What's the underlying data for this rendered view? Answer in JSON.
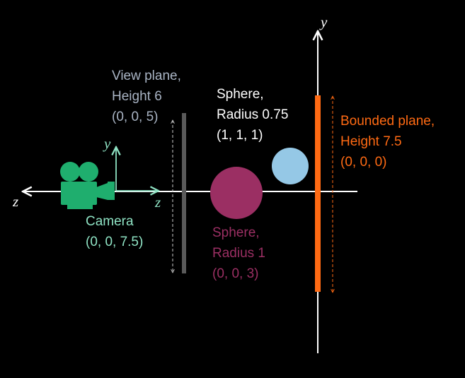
{
  "colors": {
    "background": "#000000",
    "axis": "#ffffff",
    "camera": "#1fae6e",
    "camera_label": "#8fe3c4",
    "view_plane": "#5a5a5a",
    "view_plane_label": "#a9b4c4",
    "sphere_small": "#95c8e6",
    "sphere_large": "#9b2f63",
    "bounded_plane": "#ff6a13"
  },
  "axes": {
    "world_y": "y",
    "world_z": "z",
    "camera_y": "y",
    "camera_z": "z"
  },
  "labels": {
    "view_plane": [
      "View plane,",
      "Height 6",
      "(0, 0, 5)"
    ],
    "sphere_small": [
      "Sphere,",
      "Radius 0.75",
      "(1, 1, 1)"
    ],
    "bounded_plane": [
      "Bounded plane,",
      "Height 7.5",
      "(0, 0, 0)"
    ],
    "camera": [
      "Camera",
      "(0, 0, 7.5)"
    ],
    "sphere_large": [
      "Sphere,",
      "Radius 1",
      "(0, 0, 3)"
    ]
  },
  "icons": {
    "camera": "movie-camera-icon"
  }
}
